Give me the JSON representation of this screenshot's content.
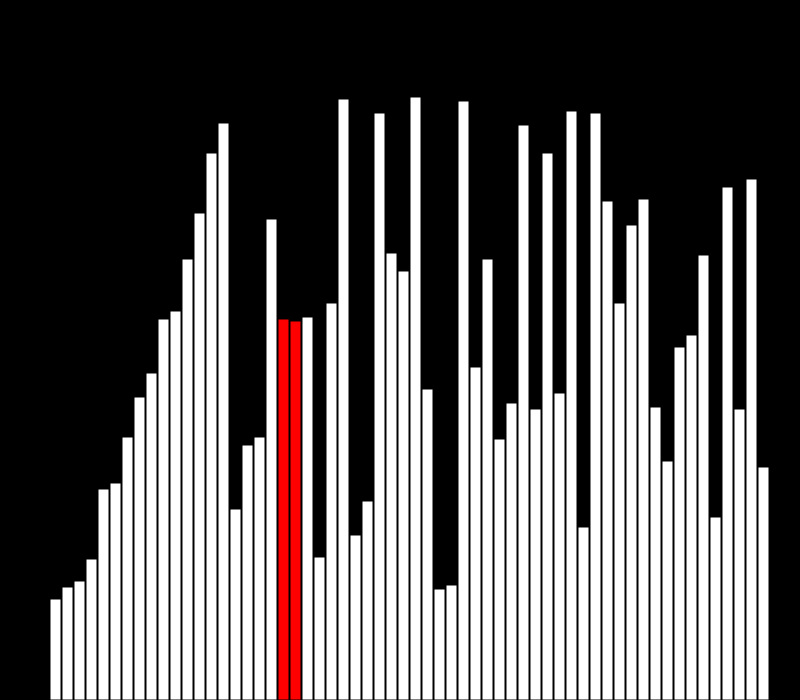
{
  "colors": {
    "background": "#000000",
    "bar_fill": "#ffffff",
    "bar_stroke": "#000000",
    "highlight_fill": "#ff0000"
  },
  "chart_data": {
    "type": "bar",
    "title": "",
    "xlabel": "",
    "ylabel": "",
    "ylim": [
      0,
      700
    ],
    "grid": false,
    "legend": "none",
    "values": [
      101,
      113,
      119,
      141,
      211,
      217,
      263,
      303,
      327,
      381,
      389,
      441,
      487,
      547,
      577,
      191,
      255,
      263,
      481,
      381,
      379,
      383,
      143,
      397,
      601,
      165,
      199,
      587,
      447,
      429,
      603,
      311,
      111,
      115,
      599,
      333,
      441,
      261,
      297,
      575,
      291,
      547,
      307,
      589,
      173,
      587,
      499,
      397,
      475,
      501,
      293,
      239,
      353,
      365,
      445,
      183,
      513,
      291,
      521,
      233
    ],
    "highlighted_indices": [
      19,
      20
    ]
  }
}
